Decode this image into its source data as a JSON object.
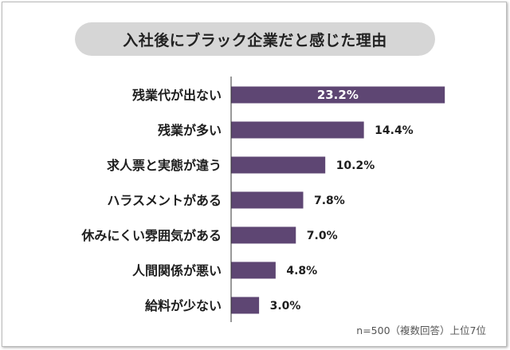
{
  "chart_data": {
    "type": "bar",
    "orientation": "horizontal",
    "title": "入社後にブラック企業だと感じた理由",
    "categories": [
      "残業代が出ない",
      "残業が多い",
      "求人票と実態が違う",
      "ハラスメントがある",
      "休みにくい雰囲気がある",
      "人間関係が悪い",
      "給料が少ない"
    ],
    "values": [
      23.2,
      14.4,
      10.2,
      7.8,
      7.0,
      4.8,
      3.0
    ],
    "value_labels": [
      "23.2%",
      "14.4%",
      "10.2%",
      "7.8%",
      "7.0%",
      "4.8%",
      "3.0%"
    ],
    "value_label_inside_first": true,
    "xlim": [
      0,
      26
    ],
    "grid": false,
    "bar_color": "#5e4673",
    "note": "n=500（複数回答）上位7位"
  },
  "colors": {
    "bar": "#5e4673",
    "label_inside": "#ffffff",
    "label_outside": "#1e1e1e",
    "axis": "#333333"
  }
}
